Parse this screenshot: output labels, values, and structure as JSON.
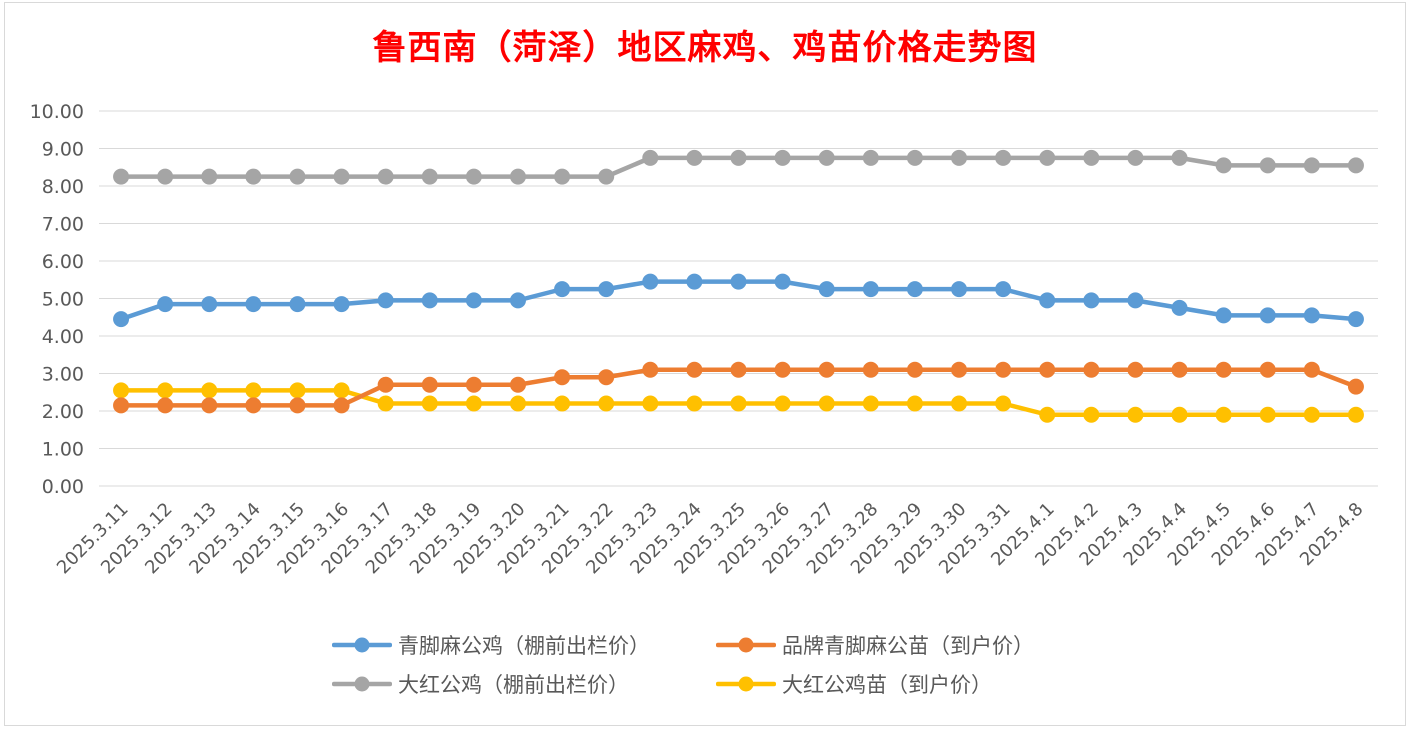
{
  "chart_data": {
    "type": "line",
    "title": "鲁西南（菏泽）地区麻鸡、鸡苗价格走势图",
    "xlabel": "",
    "ylabel": "",
    "ylim": [
      0,
      10
    ],
    "y_ticks": [
      "0.00",
      "1.00",
      "2.00",
      "3.00",
      "4.00",
      "5.00",
      "6.00",
      "7.00",
      "8.00",
      "9.00",
      "10.00"
    ],
    "grid": true,
    "legend_position": "bottom",
    "categories": [
      "2025.3.11",
      "2025.3.12",
      "2025.3.13",
      "2025.3.14",
      "2025.3.15",
      "2025.3.16",
      "2025.3.17",
      "2025.3.18",
      "2025.3.19",
      "2025.3.20",
      "2025.3.21",
      "2025.3.22",
      "2025.3.23",
      "2025.3.24",
      "2025.3.25",
      "2025.3.26",
      "2025.3.27",
      "2025.3.28",
      "2025.3.29",
      "2025.3.30",
      "2025.3.31",
      "2025.4.1",
      "2025.4.2",
      "2025.4.3",
      "2025.4.4",
      "2025.4.5",
      "2025.4.6",
      "2025.4.7",
      "2025.4.8"
    ],
    "series": [
      {
        "name": "青脚麻公鸡（棚前出栏价）",
        "color": "#5b9bd5",
        "values": [
          4.45,
          4.85,
          4.85,
          4.85,
          4.85,
          4.85,
          4.95,
          4.95,
          4.95,
          4.95,
          5.25,
          5.25,
          5.45,
          5.45,
          5.45,
          5.45,
          5.25,
          5.25,
          5.25,
          5.25,
          5.25,
          4.95,
          4.95,
          4.95,
          4.75,
          4.55,
          4.55,
          4.55,
          4.45
        ]
      },
      {
        "name": "品牌青脚麻公苗（到户价）",
        "color": "#ed7d31",
        "values": [
          2.15,
          2.15,
          2.15,
          2.15,
          2.15,
          2.15,
          2.7,
          2.7,
          2.7,
          2.7,
          2.9,
          2.9,
          3.1,
          3.1,
          3.1,
          3.1,
          3.1,
          3.1,
          3.1,
          3.1,
          3.1,
          3.1,
          3.1,
          3.1,
          3.1,
          3.1,
          3.1,
          3.1,
          2.65
        ]
      },
      {
        "name": "大红公鸡（棚前出栏价）",
        "color": "#a5a5a5",
        "values": [
          8.25,
          8.25,
          8.25,
          8.25,
          8.25,
          8.25,
          8.25,
          8.25,
          8.25,
          8.25,
          8.25,
          8.25,
          8.75,
          8.75,
          8.75,
          8.75,
          8.75,
          8.75,
          8.75,
          8.75,
          8.75,
          8.75,
          8.75,
          8.75,
          8.75,
          8.55,
          8.55,
          8.55,
          8.55
        ]
      },
      {
        "name": "大红公鸡苗（到户价）",
        "color": "#ffc000",
        "values": [
          2.55,
          2.55,
          2.55,
          2.55,
          2.55,
          2.55,
          2.2,
          2.2,
          2.2,
          2.2,
          2.2,
          2.2,
          2.2,
          2.2,
          2.2,
          2.2,
          2.2,
          2.2,
          2.2,
          2.2,
          2.2,
          1.9,
          1.9,
          1.9,
          1.9,
          1.9,
          1.9,
          1.9,
          1.9
        ]
      }
    ]
  }
}
